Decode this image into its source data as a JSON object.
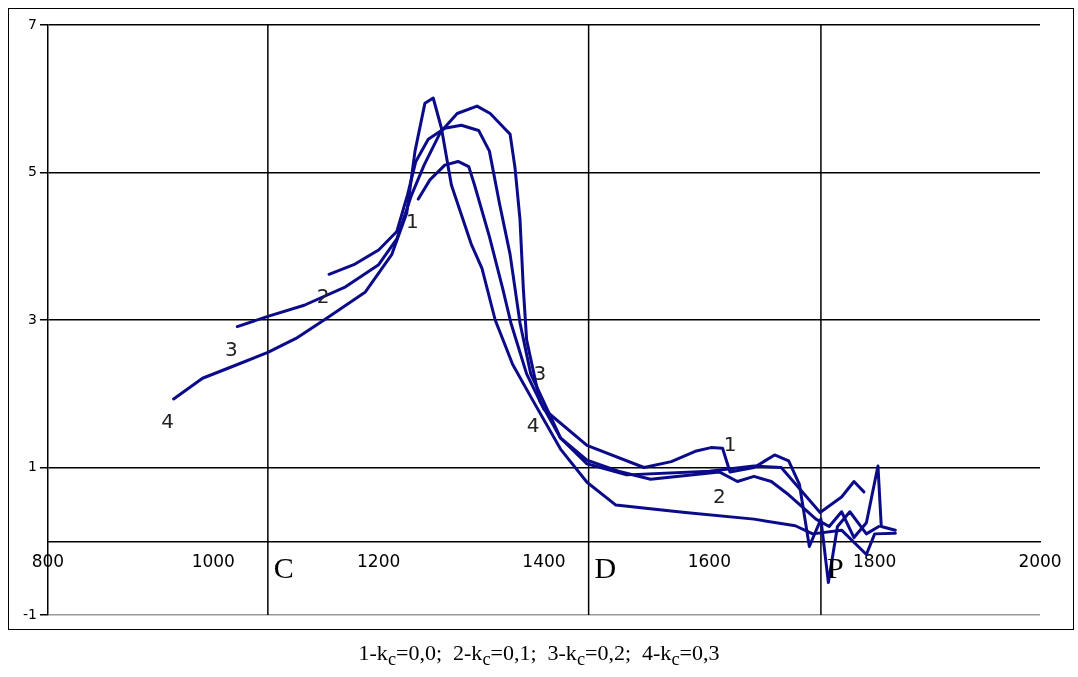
{
  "chart_data": {
    "type": "line",
    "series": [
      {
        "name": "1",
        "color": "#0b0b8a",
        "x": [
          1248,
          1262,
          1280,
          1296,
          1309,
          1316,
          1334,
          1350,
          1360,
          1379,
          1400,
          1452,
          1521,
          1554,
          1583,
          1602,
          1616,
          1625,
          1654,
          1679,
          1696,
          1709,
          1721,
          1735,
          1744,
          1755,
          1770,
          1790,
          1805
        ],
        "values": [
          4.64,
          4.9,
          5.1,
          5.15,
          5.08,
          4.83,
          4.13,
          3.43,
          2.96,
          2.27,
          1.79,
          1.3,
          1.0,
          1.08,
          1.22,
          1.27,
          1.26,
          0.94,
          1.0,
          1.17,
          1.09,
          0.77,
          -0.07,
          0.3,
          -0.56,
          0.2,
          0.4,
          0.1,
          0.2
        ]
      },
      {
        "name": "2",
        "color": "#0b0b8a",
        "x": [
          1140,
          1170,
          1200,
          1222,
          1235,
          1245,
          1260,
          1280,
          1300,
          1321,
          1334,
          1346,
          1359,
          1371,
          1384,
          1420,
          1452,
          1490,
          1529,
          1612,
          1634,
          1654,
          1675,
          1696,
          1729,
          1745,
          1760,
          1775,
          1790,
          1804,
          1808,
          1825
        ],
        "values": [
          3.62,
          3.75,
          3.95,
          4.2,
          4.7,
          5.15,
          5.45,
          5.6,
          5.64,
          5.57,
          5.29,
          4.59,
          3.89,
          2.96,
          2.27,
          1.4,
          1.1,
          0.95,
          0.84,
          0.94,
          0.81,
          0.88,
          0.81,
          0.63,
          0.3,
          0.2,
          0.4,
          0.05,
          0.25,
          1.02,
          0.2,
          0.15
        ]
      },
      {
        "name": "3",
        "color": "#0b0b8a",
        "x": [
          1029,
          1066,
          1110,
          1160,
          1200,
          1222,
          1240,
          1255,
          1275,
          1295,
          1319,
          1335,
          1359,
          1365,
          1371,
          1375,
          1379,
          1395,
          1420,
          1452,
          1500,
          1600,
          1654,
          1687,
          1734,
          1760,
          1775,
          1787
        ],
        "values": [
          2.91,
          3.05,
          3.2,
          3.45,
          3.75,
          4.1,
          4.7,
          5.1,
          5.55,
          5.8,
          5.9,
          5.8,
          5.52,
          5.06,
          4.36,
          3.43,
          2.73,
          1.9,
          1.4,
          1.05,
          0.9,
          0.95,
          1.02,
          1.0,
          0.39,
          0.6,
          0.81,
          0.67
        ]
      },
      {
        "name": "4",
        "color": "#0b0b8a",
        "x": [
          952,
          987,
          1030,
          1066,
          1100,
          1134,
          1184,
          1216,
          1234,
          1244,
          1256,
          1266,
          1276,
          1288,
          1312,
          1325,
          1341,
          1362,
          1387,
          1420,
          1452,
          1487,
          1571,
          1654,
          1704,
          1725,
          1760,
          1790,
          1800,
          1825
        ],
        "values": [
          1.93,
          2.21,
          2.4,
          2.56,
          2.75,
          3.0,
          3.38,
          3.89,
          4.45,
          5.29,
          5.94,
          6.01,
          5.6,
          4.83,
          4.03,
          3.7,
          3.0,
          2.4,
          1.9,
          1.25,
          0.8,
          0.49,
          0.39,
          0.3,
          0.21,
          0.1,
          0.15,
          -0.18,
          0.1,
          0.11
        ]
      }
    ],
    "xlim": [
      800,
      2000
    ],
    "xticks": [
      800,
      1000,
      1200,
      1400,
      1600,
      1800,
      2000
    ],
    "ylim": [
      -1,
      7
    ],
    "yticks": [
      -1,
      1,
      3,
      5,
      7
    ],
    "grid": "y",
    "legend": false,
    "marker": "none",
    "line_style": "solid",
    "ref_lines": [
      {
        "axis": "x",
        "value": 1066,
        "label": "C",
        "color": "#000000"
      },
      {
        "axis": "x",
        "value": 1454,
        "label": "D",
        "color": "#000000"
      },
      {
        "axis": "x",
        "value": 1735,
        "label": "P",
        "color": "#000000"
      }
    ],
    "annotations": [
      "1-k$_{c}$=0,0;  2-k$_{c}$=0,1;  3-k$_{c}$=0,2;  4-k$_{c}$=0,3"
    ]
  }
}
